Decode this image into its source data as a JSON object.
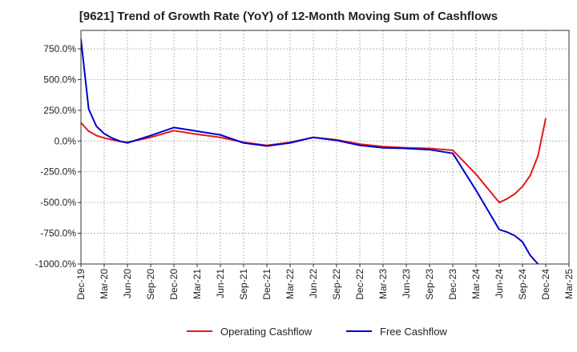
{
  "chart_data": {
    "type": "line",
    "title": "[9621]  Trend of Growth Rate (YoY) of 12-Month Moving Sum of Cashflows",
    "xlabel": "",
    "ylabel": "",
    "x_ticks": [
      "Dec-19",
      "Mar-20",
      "Jun-20",
      "Sep-20",
      "Dec-20",
      "Mar-21",
      "Jun-21",
      "Sep-21",
      "Dec-21",
      "Mar-22",
      "Jun-22",
      "Sep-22",
      "Dec-22",
      "Mar-23",
      "Jun-23",
      "Sep-23",
      "Dec-23",
      "Mar-24",
      "Jun-24",
      "Sep-24",
      "Dec-24",
      "Mar-25"
    ],
    "y_ticks": [
      750,
      500,
      250,
      0,
      -250,
      -500,
      -750,
      -1000
    ],
    "y_tick_labels": [
      "750.0%",
      "500.0%",
      "250.0%",
      "0.0%",
      "-250.0%",
      "-500.0%",
      "-750.0%",
      "-1000.0%"
    ],
    "ylim": [
      -1000,
      900
    ],
    "grid": true,
    "legend_position": "bottom",
    "series": [
      {
        "name": "Operating Cashflow",
        "color": "#e41a1c",
        "x": [
          "Dec-19",
          "Jan-20",
          "Feb-20",
          "Mar-20",
          "Apr-20",
          "May-20",
          "Jun-20",
          "Sep-20",
          "Dec-20",
          "Mar-21",
          "Jun-21",
          "Sep-21",
          "Dec-21",
          "Mar-22",
          "Jun-22",
          "Sep-22",
          "Dec-22",
          "Mar-23",
          "Jun-23",
          "Sep-23",
          "Dec-23",
          "Mar-24",
          "Jun-24",
          "Jul-24",
          "Aug-24",
          "Sep-24",
          "Oct-24",
          "Nov-24",
          "Dec-24"
        ],
        "values": [
          150,
          80,
          45,
          25,
          10,
          -3,
          -10,
          30,
          85,
          55,
          30,
          -10,
          -35,
          -10,
          30,
          10,
          -25,
          -45,
          -55,
          -60,
          -75,
          -270,
          -500,
          -470,
          -430,
          -370,
          -280,
          -120,
          185
        ]
      },
      {
        "name": "Free Cashflow",
        "color": "#0000cc",
        "x": [
          "Dec-19",
          "Jan-20",
          "Feb-20",
          "Mar-20",
          "Apr-20",
          "May-20",
          "Jun-20",
          "Sep-20",
          "Dec-20",
          "Mar-21",
          "Jun-21",
          "Sep-21",
          "Dec-21",
          "Mar-22",
          "Jun-22",
          "Sep-22",
          "Dec-22",
          "Mar-23",
          "Jun-23",
          "Sep-23",
          "Dec-23",
          "Mar-24",
          "Jun-24",
          "Jul-24",
          "Aug-24",
          "Sep-24",
          "Oct-24",
          "Nov-24"
        ],
        "values": [
          830,
          260,
          120,
          60,
          25,
          0,
          -15,
          45,
          110,
          80,
          50,
          -15,
          -40,
          -15,
          30,
          5,
          -35,
          -55,
          -60,
          -70,
          -100,
          -400,
          -720,
          -740,
          -770,
          -820,
          -930,
          -1000
        ]
      }
    ]
  }
}
